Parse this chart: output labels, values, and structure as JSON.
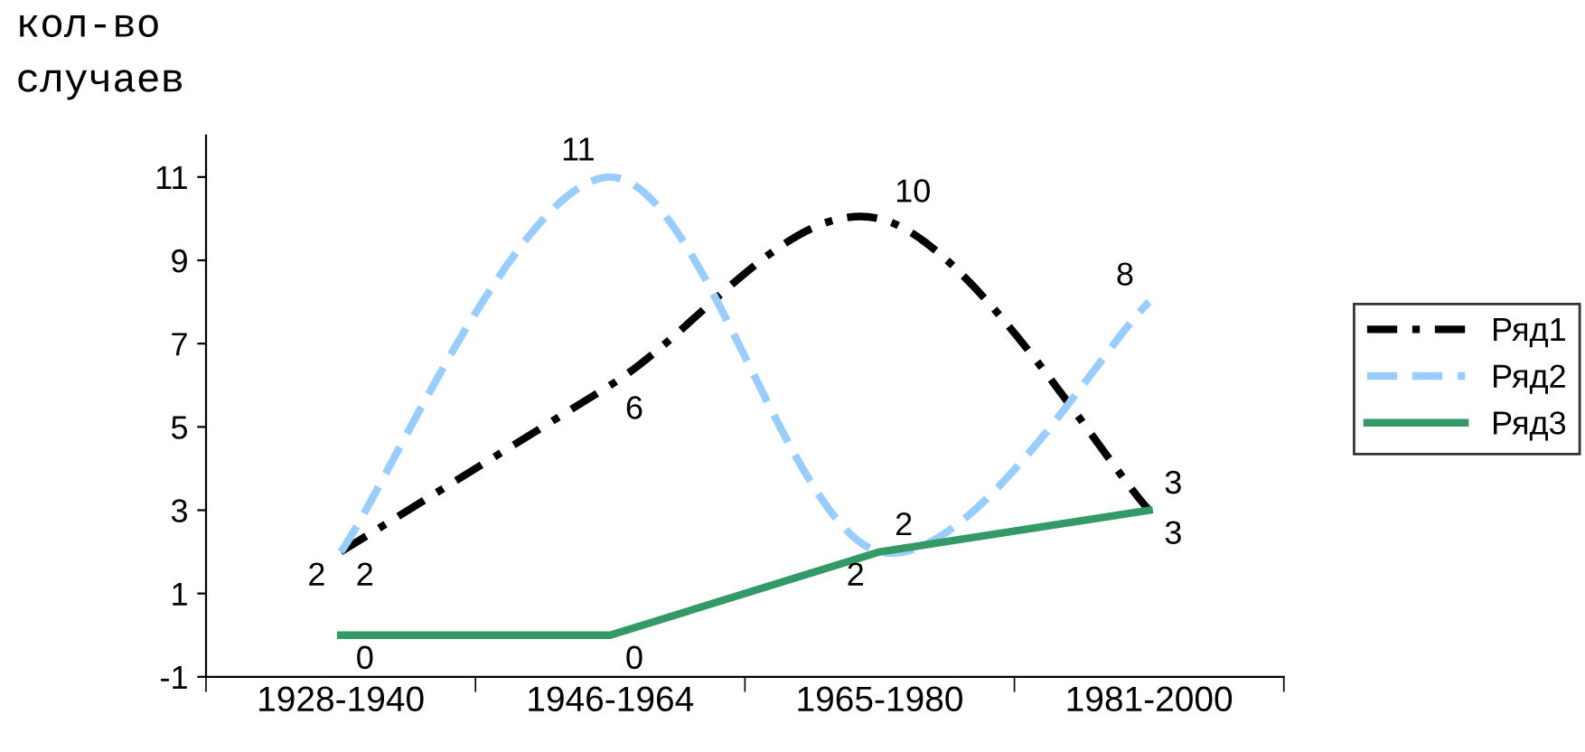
{
  "chart_data": {
    "type": "line",
    "ylabel": "кол-во\nслучаев",
    "categories": [
      "1928-1940",
      "1946-1964",
      "1965-1980",
      "1981-2000"
    ],
    "series": [
      {
        "name": "Ряд1",
        "color": "#000000",
        "values": [
          2,
          6,
          10,
          3
        ],
        "line_style": "dashdot"
      },
      {
        "name": "Ряд2",
        "color": "#99ccff",
        "values": [
          2,
          11,
          2,
          8
        ],
        "line_style": "dashed"
      },
      {
        "name": "Ряд3",
        "color": "#339966",
        "values": [
          0,
          0,
          2,
          3
        ],
        "line_style": "solid"
      }
    ],
    "ylim": [
      -1,
      12
    ],
    "yticks": [
      -1,
      1,
      3,
      5,
      7,
      9,
      11
    ],
    "data_labels": true,
    "legend": "right",
    "grid": false,
    "marker": "none"
  }
}
